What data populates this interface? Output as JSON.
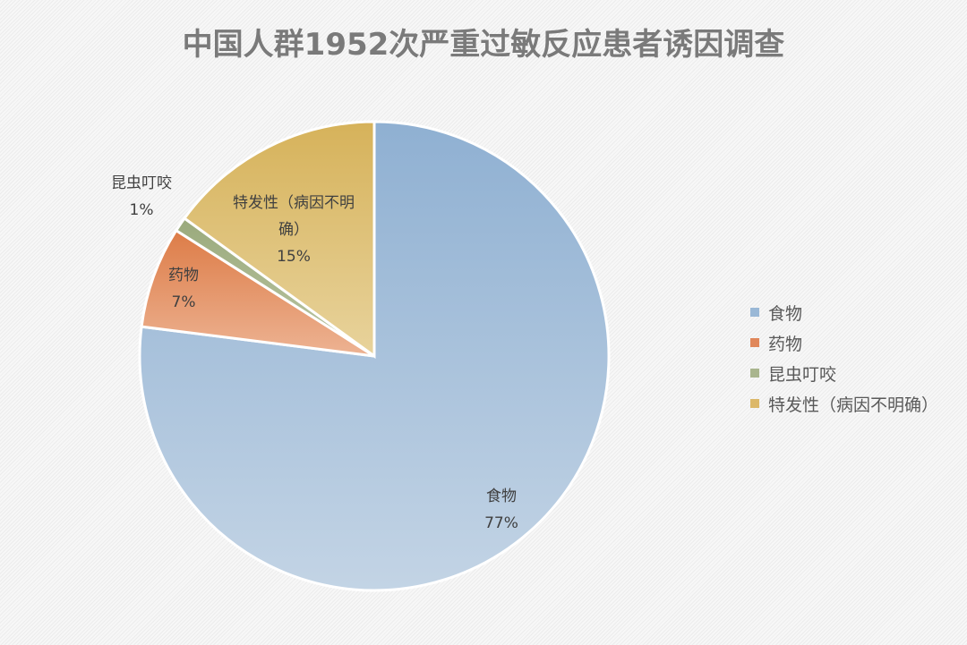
{
  "title": "中国人群1952次严重过敏反应患者诱因调查",
  "legend": [
    {
      "label": "食物",
      "color": "#9ab8d6"
    },
    {
      "label": "药物",
      "color": "#e0875a"
    },
    {
      "label": "昆虫叮咬",
      "color": "#a9b58e"
    },
    {
      "label": "特发性（病因不明确）",
      "color": "#dcb869"
    }
  ],
  "labels": {
    "food": {
      "name": "食物",
      "pct": "77%"
    },
    "drug": {
      "name": "药物",
      "pct": "7%"
    },
    "insect": {
      "name": "昆虫叮咬",
      "pct": "1%"
    },
    "idio_line1": "特发性（病因不明",
    "idio_line2": "确）",
    "idio_pct": "15%"
  },
  "chart_data": {
    "type": "pie",
    "title": "中国人群1952次严重过敏反应患者诱因调查",
    "categories": [
      "食物",
      "药物",
      "昆虫叮咬",
      "特发性（病因不明确）"
    ],
    "values": [
      77,
      7,
      1,
      15
    ],
    "unit": "%",
    "colors": [
      "#9ab8d6",
      "#e0875a",
      "#a9b58e",
      "#dcb869"
    ],
    "start_angle": "12 o'clock, clockwise",
    "legend_position": "right"
  }
}
